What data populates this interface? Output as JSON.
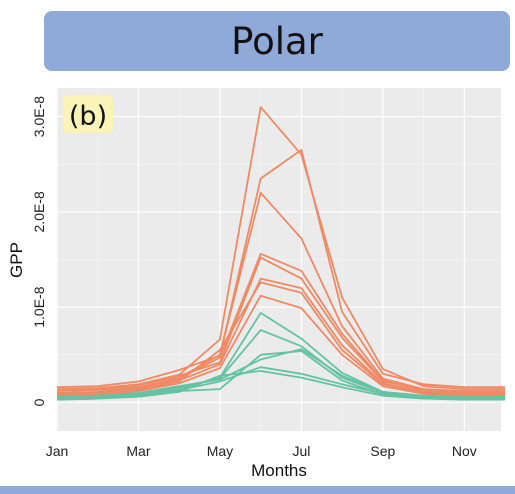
{
  "header": {
    "title": "Polar"
  },
  "colors": {
    "banner": "#8fa9d8",
    "orange": "#ef8a64",
    "green": "#65c3a3",
    "label_bg": "#fbf3b8"
  },
  "chart_data": {
    "type": "line",
    "panel_label": "(b)",
    "title": "Polar",
    "xlabel": "Months",
    "ylabel": "GPP",
    "x": [
      1,
      2,
      3,
      4,
      5,
      6,
      7,
      8,
      9,
      10,
      11,
      12
    ],
    "xlim": [
      1,
      11.9
    ],
    "ylim": [
      -3e-09,
      3.3e-08
    ],
    "xticks": [
      {
        "value": 1,
        "label": "Jan"
      },
      {
        "value": 3,
        "label": "Mar"
      },
      {
        "value": 5,
        "label": "May"
      },
      {
        "value": 7,
        "label": "Jul"
      },
      {
        "value": 9,
        "label": "Sep"
      },
      {
        "value": 11,
        "label": "Nov"
      }
    ],
    "yticks": [
      {
        "value": 0,
        "label": "0"
      },
      {
        "value": 1e-08,
        "label": "1.0E-8"
      },
      {
        "value": 2e-08,
        "label": "2.0E-8"
      },
      {
        "value": 3e-08,
        "label": "3.0E-8"
      }
    ],
    "grid": true,
    "series": [
      {
        "name": "orange-1",
        "group": "orange",
        "values": [
          1.4e-09,
          1.5e-09,
          1.9e-09,
          2.9e-09,
          6.6e-09,
          3.1e-08,
          2.6e-08,
          1.1e-08,
          3.5e-09,
          1.7e-09,
          1.4e-09,
          1.4e-09
        ]
      },
      {
        "name": "orange-2",
        "group": "orange",
        "values": [
          1.6e-09,
          1.7e-09,
          2.2e-09,
          3.4e-09,
          4.9e-09,
          2.35e-08,
          2.65e-08,
          9.5e-09,
          3e-09,
          1.9e-09,
          1.6e-09,
          1.6e-09
        ]
      },
      {
        "name": "orange-3",
        "group": "orange",
        "values": [
          1.2e-09,
          1.3e-09,
          1.6e-09,
          2.6e-09,
          5e-09,
          2.2e-08,
          1.72e-08,
          8e-09,
          2.5e-09,
          1.4e-09,
          1.1e-09,
          1.1e-09
        ]
      },
      {
        "name": "orange-4",
        "group": "orange",
        "values": [
          1e-09,
          1.1e-09,
          1.5e-09,
          2.5e-09,
          4.7e-09,
          1.56e-08,
          1.38e-08,
          7.2e-09,
          2.3e-09,
          1.2e-09,
          1e-09,
          1e-09
        ]
      },
      {
        "name": "orange-5",
        "group": "orange",
        "values": [
          1.3e-09,
          1.4e-09,
          1.8e-09,
          2.8e-09,
          4.2e-09,
          1.52e-08,
          1.3e-08,
          6.8e-09,
          2.2e-09,
          1.4e-09,
          1.2e-09,
          1.2e-09
        ]
      },
      {
        "name": "orange-6",
        "group": "orange",
        "values": [
          9e-10,
          1e-09,
          1.4e-09,
          2.3e-09,
          4e-09,
          1.3e-08,
          1.2e-08,
          6e-09,
          2e-09,
          1.1e-09,
          9e-10,
          9e-10
        ]
      },
      {
        "name": "orange-7",
        "group": "orange",
        "values": [
          8e-10,
          9e-10,
          1.3e-09,
          2.2e-09,
          5.5e-09,
          1.26e-08,
          1.15e-08,
          5.5e-09,
          1.9e-09,
          1e-09,
          8e-10,
          8e-10
        ]
      },
      {
        "name": "orange-8",
        "group": "orange",
        "values": [
          7e-10,
          8e-10,
          1.2e-09,
          2e-09,
          3.6e-09,
          1.12e-08,
          9.9e-09,
          5e-09,
          1.7e-09,
          9e-10,
          7e-10,
          7e-10
        ]
      },
      {
        "name": "green-1",
        "group": "green",
        "values": [
          4e-10,
          5e-10,
          8e-10,
          1.4e-09,
          2.6e-09,
          9.4e-09,
          6.7e-09,
          3.1e-09,
          1.1e-09,
          6e-10,
          4e-10,
          4e-10
        ]
      },
      {
        "name": "green-2",
        "group": "green",
        "values": [
          5e-10,
          6e-10,
          9e-10,
          1.6e-09,
          2.5e-09,
          7.6e-09,
          5.9e-09,
          2.6e-09,
          1e-09,
          6e-10,
          5e-10,
          5e-10
        ]
      },
      {
        "name": "green-3",
        "group": "green",
        "values": [
          3e-10,
          4e-10,
          7e-10,
          1.2e-09,
          1.4e-09,
          5e-09,
          5.4e-09,
          2.3e-09,
          8e-10,
          5e-10,
          3e-10,
          3e-10
        ]
      },
      {
        "name": "green-4",
        "group": "green",
        "values": [
          6e-10,
          7e-10,
          1e-09,
          1.7e-09,
          2.4e-09,
          4.5e-09,
          5.6e-09,
          2.8e-09,
          1.1e-09,
          7e-10,
          6e-10,
          6e-10
        ]
      },
      {
        "name": "green-5",
        "group": "green",
        "values": [
          4e-10,
          5e-10,
          8e-10,
          1.3e-09,
          2.2e-09,
          3.7e-09,
          3e-09,
          1.9e-09,
          9e-10,
          5e-10,
          4e-10,
          4e-10
        ]
      },
      {
        "name": "green-6",
        "group": "green",
        "values": [
          3e-10,
          4e-10,
          6e-10,
          1.1e-09,
          2.8e-09,
          3.3e-09,
          2.6e-09,
          1.6e-09,
          7e-10,
          4e-10,
          3e-10,
          3e-10
        ]
      }
    ]
  }
}
